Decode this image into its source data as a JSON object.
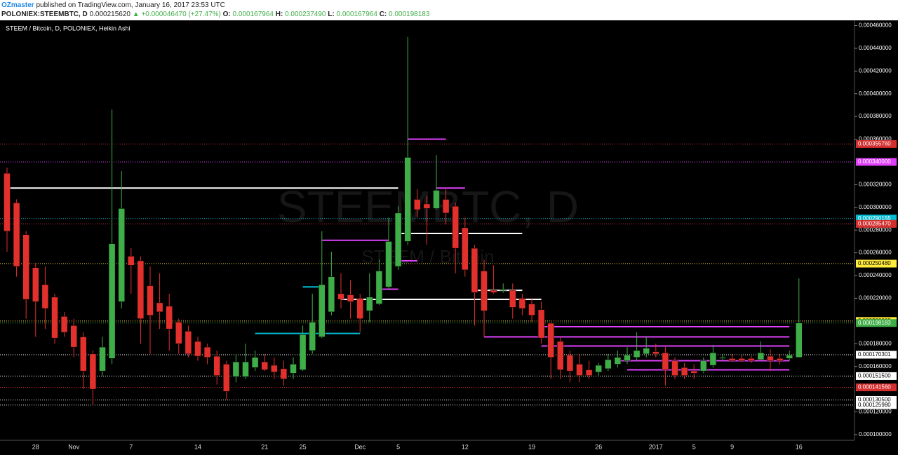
{
  "chart_data": {
    "type": "candlestick",
    "header": {
      "author": "OZmaster",
      "published": "published on TradingView.com, January 16, 2017 23:53 UTC",
      "symbol": "POLONIEX:STEEMBTC, D",
      "last": "0.000215620",
      "change": "▲ +0.000046470 (+27.47%)",
      "fields": [
        {
          "label": "O:",
          "value": "0.000167964"
        },
        {
          "label": "H:",
          "value": "0.000237490"
        },
        {
          "label": "L:",
          "value": "0.000167964"
        },
        {
          "label": "C:",
          "value": "0.000198183"
        }
      ]
    },
    "title": "STEEM / Bitcoin, D, POLONIEX, Heikin Ashi",
    "watermark": "STEEMBTC, D",
    "watermark_sub": "STEEM / Bitcoin",
    "up_color": "#3fae49",
    "down_color": "#e2312d",
    "categories": [
      null,
      null,
      null,
      "28",
      null,
      null,
      null,
      "Nov",
      null,
      null,
      null,
      null,
      null,
      "7",
      null,
      null,
      null,
      null,
      null,
      null,
      "14",
      null,
      null,
      null,
      null,
      null,
      null,
      "21",
      null,
      null,
      null,
      "25",
      null,
      null,
      null,
      null,
      null,
      "Dec",
      null,
      null,
      null,
      "5",
      null,
      null,
      null,
      null,
      null,
      null,
      "12",
      null,
      null,
      null,
      null,
      null,
      null,
      "19",
      null,
      null,
      null,
      null,
      null,
      null,
      "26",
      null,
      null,
      null,
      null,
      null,
      "2017",
      null,
      null,
      null,
      "5",
      null,
      null,
      null,
      "9",
      null,
      null,
      null,
      null,
      null,
      null,
      "16"
    ],
    "ohlc": [
      [
        0.00033,
        0.000335,
        0.000261,
        0.000279
      ],
      [
        0.000304,
        0.000307,
        0.000239,
        0.000248
      ],
      [
        0.000276,
        0.000279,
        0.000202,
        0.000219
      ],
      [
        0.000247,
        0.000251,
        0.000186,
        0.000217
      ],
      [
        0.000232,
        0.000248,
        0.000193,
        0.000211
      ],
      [
        0.000221,
        0.000224,
        0.00018,
        0.000185
      ],
      [
        0.000204,
        0.000208,
        0.000186,
        0.00019
      ],
      [
        0.000196,
        0.000202,
        0.000168,
        0.000177
      ],
      [
        0.000186,
        0.00019,
        0.00014,
        0.000156
      ],
      [
        0.000171,
        0.000174,
        0.000126,
        0.00014
      ],
      [
        0.000156,
        0.000186,
        0.000152,
        0.000177
      ],
      [
        0.000167,
        0.000386,
        0.000162,
        0.000268
      ],
      [
        0.000217,
        0.000332,
        0.000211,
        0.000299
      ],
      [
        0.000257,
        0.000264,
        0.000224,
        0.000249
      ],
      [
        0.000253,
        0.000257,
        0.00018,
        0.000202
      ],
      [
        0.000231,
        0.000248,
        0.000171,
        0.000205
      ],
      [
        0.000216,
        0.000242,
        0.000193,
        0.000208
      ],
      [
        0.000213,
        0.000224,
        0.000174,
        0.000193
      ],
      [
        0.000199,
        0.000202,
        0.000171,
        0.00018
      ],
      [
        0.000191,
        0.000196,
        0.000168,
        0.000171
      ],
      [
        0.000182,
        0.000186,
        0.000165,
        0.000169
      ],
      [
        0.000177,
        0.00018,
        0.000162,
        0.000168
      ],
      [
        0.000169,
        0.000174,
        0.000144,
        0.000152
      ],
      [
        0.000162,
        0.000165,
        0.000131,
        0.000138
      ],
      [
        0.000151,
        0.000171,
        0.000146,
        0.000164
      ],
      [
        0.000151,
        0.00018,
        0.000149,
        0.000164
      ],
      [
        0.000159,
        0.000174,
        0.000156,
        0.000168
      ],
      [
        0.000164,
        0.000171,
        0.000156,
        0.000157
      ],
      [
        0.000161,
        0.000168,
        0.000149,
        0.000155
      ],
      [
        0.000158,
        0.000165,
        0.000143,
        0.000149
      ],
      [
        0.000154,
        0.000168,
        0.000149,
        0.000162
      ],
      [
        0.000157,
        0.000196,
        0.000156,
        0.000188
      ],
      [
        0.000174,
        0.000224,
        0.000171,
        0.000199
      ],
      [
        0.000186,
        0.000279,
        0.000185,
        0.000232
      ],
      [
        0.000208,
        0.000261,
        0.000205,
        0.000239
      ],
      [
        0.000224,
        0.000242,
        0.000211,
        0.000219
      ],
      [
        0.000223,
        0.000236,
        0.000202,
        0.000217
      ],
      [
        0.00022,
        0.000224,
        0.00019,
        0.000202
      ],
      [
        0.000209,
        0.000242,
        0.000199,
        0.000221
      ],
      [
        0.000215,
        0.000254,
        0.000214,
        0.000244
      ],
      [
        0.00023,
        0.000291,
        0.000228,
        0.00027
      ],
      [
        0.000248,
        0.000301,
        0.000245,
        0.000295
      ],
      [
        0.00027,
        0.00045,
        0.000267,
        0.000344
      ],
      [
        0.000307,
        0.000316,
        0.000291,
        0.000298
      ],
      [
        0.000303,
        0.00031,
        0.000267,
        0.000299
      ],
      [
        0.000299,
        0.000346,
        0.000298,
        0.000315
      ],
      [
        0.000307,
        0.000316,
        0.000285,
        0.000295
      ],
      [
        0.000301,
        0.000304,
        0.000242,
        0.000264
      ],
      [
        0.000282,
        0.000291,
        0.000239,
        0.000245
      ],
      [
        0.000264,
        0.000267,
        0.000196,
        0.000225
      ],
      [
        0.000244,
        0.000254,
        0.000186,
        0.000209
      ],
      [
        0.000227,
        0.000249,
        0.000224,
        0.000225
      ],
      [
        0.000227,
        0.000233,
        0.000225,
        0.000228
      ],
      [
        0.000227,
        0.000233,
        0.000202,
        0.000212
      ],
      [
        0.00022,
        0.000224,
        0.000205,
        0.000211
      ],
      [
        0.000215,
        0.00022,
        0.000199,
        0.000205
      ],
      [
        0.00021,
        0.000217,
        0.00018,
        0.000185
      ],
      [
        0.000198,
        0.000199,
        0.000149,
        0.000168
      ],
      [
        0.000182,
        0.000186,
        0.000149,
        0.000157
      ],
      [
        0.00017,
        0.000174,
        0.000146,
        0.000156
      ],
      [
        0.000162,
        0.000171,
        0.000146,
        0.000152
      ],
      [
        0.000157,
        0.000165,
        0.000149,
        0.000152
      ],
      [
        0.000155,
        0.000163,
        0.000152,
        0.000161
      ],
      [
        0.000158,
        0.000171,
        0.000156,
        0.000166
      ],
      [
        0.000162,
        0.000174,
        0.000159,
        0.000168
      ],
      [
        0.000165,
        0.000177,
        0.000162,
        0.00017
      ],
      [
        0.000168,
        0.00019,
        0.000165,
        0.000174
      ],
      [
        0.000171,
        0.000186,
        0.000168,
        0.000176
      ],
      [
        0.000173,
        0.00018,
        0.000168,
        0.000171
      ],
      [
        0.000172,
        0.000177,
        0.000143,
        0.000157
      ],
      [
        0.000165,
        0.000168,
        0.000149,
        0.000152
      ],
      [
        0.000159,
        0.000163,
        0.000149,
        0.000152
      ],
      [
        0.000156,
        0.000162,
        0.000149,
        0.000154
      ],
      [
        0.000156,
        0.000168,
        0.000154,
        0.000165
      ],
      [
        0.000161,
        0.000179,
        0.000159,
        0.000172
      ],
      [
        0.000167,
        0.000171,
        0.000165,
        0.000168
      ],
      [
        0.000167,
        0.000171,
        0.000164,
        0.000165
      ],
      [
        0.000167,
        0.00017,
        0.000164,
        0.000165
      ],
      [
        0.000167,
        0.000169,
        0.000163,
        0.000165
      ],
      [
        0.000166,
        0.000182,
        0.000165,
        0.000172
      ],
      [
        0.000169,
        0.000175,
        0.000156,
        0.000165
      ],
      [
        0.000167,
        0.000171,
        0.000162,
        0.000165
      ],
      [
        0.000167,
        0.000174,
        0.000165,
        0.00017
      ],
      [
        0.000167964,
        0.00023749,
        0.000167964,
        0.000198183
      ]
    ],
    "ylim": [
      9.5e-05,
      0.000464
    ],
    "yticks": [
      {
        "value": 0.00046,
        "label": "0.000460000"
      },
      {
        "value": 0.00044,
        "label": "0.000440000"
      },
      {
        "value": 0.00042,
        "label": "0.000420000"
      },
      {
        "value": 0.0004,
        "label": "0.000400000"
      },
      {
        "value": 0.00038,
        "label": "0.000380000"
      },
      {
        "value": 0.00036,
        "label": "0.000360000"
      },
      {
        "value": 0.00032,
        "label": "0.000320000"
      },
      {
        "value": 0.0003,
        "label": "0.000300000"
      },
      {
        "value": 0.00028,
        "label": "0.000280000"
      },
      {
        "value": 0.00026,
        "label": "0.000260000"
      },
      {
        "value": 0.00024,
        "label": "0.000240000"
      },
      {
        "value": 0.00022,
        "label": "0.000220000"
      },
      {
        "value": 0.00018,
        "label": "0.000180000"
      },
      {
        "value": 0.00016,
        "label": "0.000160000"
      },
      {
        "value": 0.00012,
        "label": "0.000120000"
      },
      {
        "value": 0.0001,
        "label": "0.000100000"
      }
    ],
    "hlines": [
      {
        "value": 0.00035576,
        "label": "0.000355760",
        "color": "#d32f2f"
      },
      {
        "value": 0.00034,
        "label": "0.000340000",
        "color": "#e040fb"
      },
      {
        "value": 0.000290155,
        "label": "0.000290155",
        "color": "#00bcd4"
      },
      {
        "value": 0.00028547,
        "label": "0.000285470",
        "color": "#d32f2f"
      },
      {
        "value": 0.00025048,
        "label": "0.000250480",
        "color": "#ffeb3b"
      },
      {
        "value": 0.0002,
        "label": "0.000200000",
        "color": "#ffeb3b"
      },
      {
        "value": 0.000198183,
        "label": "0.000198183",
        "color": "#3fae49"
      },
      {
        "value": 0.000170301,
        "label": "0.000170301",
        "color": "#ffffff"
      },
      {
        "value": 0.0001515,
        "label": "0.000151500",
        "color": "#ffffff"
      },
      {
        "value": 0.00014156,
        "label": "0.000141560",
        "color": "#d32f2f"
      },
      {
        "value": 0.0001305,
        "label": "0.000130500",
        "color": "#ffffff"
      },
      {
        "value": 0.00012598,
        "label": "0.000125980",
        "color": "#ffffff"
      }
    ],
    "drawings": [
      {
        "value": 0.000317,
        "from": 0,
        "to": 41,
        "color": "#ffffff"
      },
      {
        "value": 0.00036,
        "from": 42,
        "to": 46,
        "color": "#e040fb"
      },
      {
        "value": 0.000277,
        "from": 41,
        "to": 54,
        "color": "#ffffff"
      },
      {
        "value": 0.000271,
        "from": 33,
        "to": 40,
        "color": "#e040fb"
      },
      {
        "value": 0.000317,
        "from": 45,
        "to": 48,
        "color": "#e040fb"
      },
      {
        "value": 0.000253,
        "from": 41,
        "to": 43,
        "color": "#e040fb"
      },
      {
        "value": 0.00023,
        "from": 31,
        "to": 33,
        "color": "#00bcd4"
      },
      {
        "value": 0.000228,
        "from": 39,
        "to": 41,
        "color": "#e040fb"
      },
      {
        "value": 0.000219,
        "from": 35,
        "to": 56,
        "color": "#ffffff"
      },
      {
        "value": 0.000189,
        "from": 26,
        "to": 37,
        "color": "#00bcd4"
      },
      {
        "value": 0.000227,
        "from": 49,
        "to": 54,
        "color": "#ffffff"
      },
      {
        "value": 0.000195,
        "from": 56,
        "to": 82,
        "color": "#e040fb"
      },
      {
        "value": 0.000186,
        "from": 50,
        "to": 82,
        "color": "#e040fb"
      },
      {
        "value": 0.000178,
        "from": 56,
        "to": 82,
        "color": "#e040fb"
      },
      {
        "value": 0.000165,
        "from": 64,
        "to": 82,
        "color": "#e040fb"
      },
      {
        "value": 0.000157,
        "from": 65,
        "to": 82,
        "color": "#e040fb"
      }
    ]
  }
}
